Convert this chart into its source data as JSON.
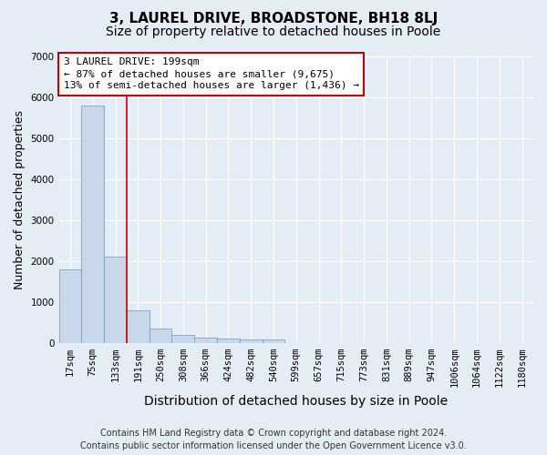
{
  "title": "3, LAUREL DRIVE, BROADSTONE, BH18 8LJ",
  "subtitle": "Size of property relative to detached houses in Poole",
  "xlabel": "Distribution of detached houses by size in Poole",
  "ylabel": "Number of detached properties",
  "bar_color": "#c8d8ea",
  "bar_edge_color": "#7098b8",
  "background_color": "#e4ecf5",
  "grid_color": "#ffffff",
  "categories": [
    "17sqm",
    "75sqm",
    "133sqm",
    "191sqm",
    "250sqm",
    "308sqm",
    "366sqm",
    "424sqm",
    "482sqm",
    "540sqm",
    "599sqm",
    "657sqm",
    "715sqm",
    "773sqm",
    "831sqm",
    "889sqm",
    "947sqm",
    "1006sqm",
    "1064sqm",
    "1122sqm",
    "1180sqm"
  ],
  "values": [
    1780,
    5780,
    2090,
    800,
    340,
    185,
    115,
    105,
    90,
    70,
    0,
    0,
    0,
    0,
    0,
    0,
    0,
    0,
    0,
    0,
    0
  ],
  "property_label": "3 LAUREL DRIVE: 199sqm",
  "annotation_line1": "← 87% of detached houses are smaller (9,675)",
  "annotation_line2": "13% of semi-detached houses are larger (1,436) →",
  "vline_x": 2.5,
  "ylim": [
    0,
    7000
  ],
  "yticks": [
    0,
    1000,
    2000,
    3000,
    4000,
    5000,
    6000,
    7000
  ],
  "footer_line1": "Contains HM Land Registry data © Crown copyright and database right 2024.",
  "footer_line2": "Contains public sector information licensed under the Open Government Licence v3.0.",
  "box_color": "#ffffff",
  "box_edge_color": "#cc0000",
  "title_fontsize": 11,
  "subtitle_fontsize": 10,
  "xlabel_fontsize": 10,
  "tick_fontsize": 7.5,
  "ylabel_fontsize": 9,
  "annotation_fontsize": 8,
  "footer_fontsize": 7
}
